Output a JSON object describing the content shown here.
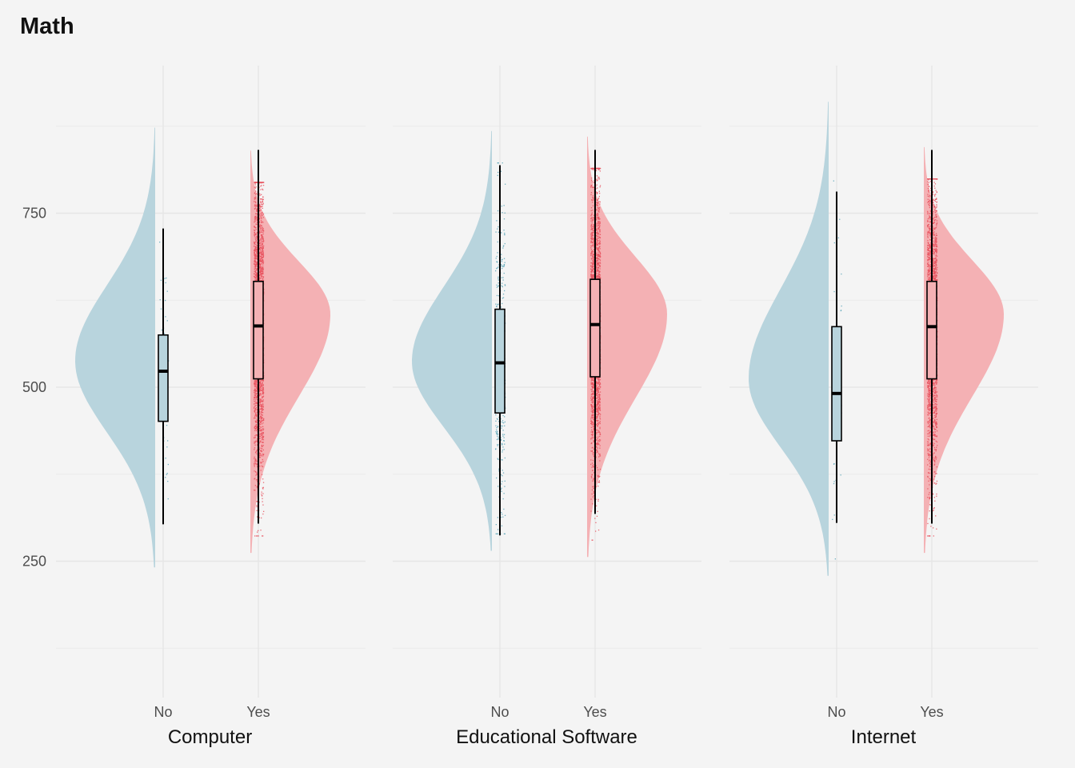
{
  "chart_data": {
    "type": "raincloud",
    "title": "Math",
    "xlabel": "",
    "ylabel": "",
    "yticks": [
      250,
      500,
      750
    ],
    "ylim": [
      75,
      1000
    ],
    "grid": true,
    "legend": "none",
    "colors": {
      "No": "#b8d4dd",
      "Yes": "#f4b1b4",
      "No_points": "#5aa6b8",
      "Yes_points": "#e8545f"
    },
    "group_labels": [
      "No",
      "Yes"
    ],
    "panels": [
      {
        "name": "Computer",
        "groups": [
          {
            "label": "No",
            "box": {
              "lower": 303,
              "q1": 451,
              "median": 523,
              "q3": 575,
              "upper": 728
            },
            "range": [
              241,
              873
            ],
            "peak": 538,
            "n_points": 60
          },
          {
            "label": "Yes",
            "box": {
              "lower": 304,
              "q1": 512,
              "median": 588,
              "q3": 652,
              "upper": 841
            },
            "range": [
              262,
              840
            ],
            "peak": 605,
            "n_points": 2600
          }
        ]
      },
      {
        "name": "Educational Software",
        "groups": [
          {
            "label": "No",
            "box": {
              "lower": 287,
              "q1": 463,
              "median": 535,
              "q3": 612,
              "upper": 819
            },
            "range": [
              265,
              868
            ],
            "peak": 537,
            "n_points": 420
          },
          {
            "label": "Yes",
            "box": {
              "lower": 318,
              "q1": 515,
              "median": 590,
              "q3": 655,
              "upper": 841
            },
            "range": [
              256,
              860
            ],
            "peak": 605,
            "n_points": 2400
          }
        ]
      },
      {
        "name": "Internet",
        "groups": [
          {
            "label": "No",
            "box": {
              "lower": 305,
              "q1": 423,
              "median": 491,
              "q3": 587,
              "upper": 781
            },
            "range": [
              229,
              910
            ],
            "peak": 512,
            "n_points": 40
          },
          {
            "label": "Yes",
            "box": {
              "lower": 304,
              "q1": 512,
              "median": 587,
              "q3": 652,
              "upper": 841
            },
            "range": [
              262,
              845
            ],
            "peak": 605,
            "n_points": 2600
          }
        ]
      }
    ]
  }
}
